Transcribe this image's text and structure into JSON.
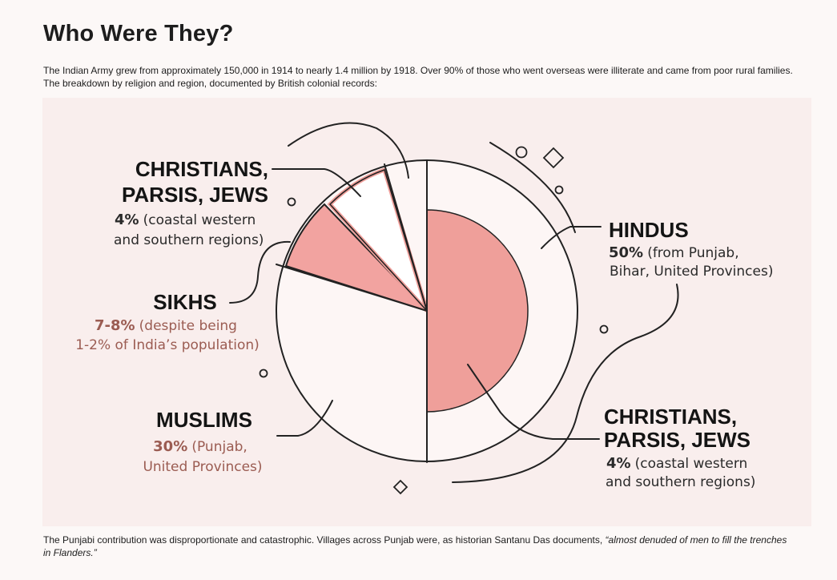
{
  "header": {
    "title": "Who Were They?",
    "intro": "The Indian Army grew from approximately 150,000 in 1914 to nearly 1.4 million by 1918. Over 90% of those who went overseas were illiterate and came from poor rural families. The breakdown by religion and region, documented by British colonial records:"
  },
  "figure": {
    "groups": [
      {
        "name": [
          "CHRISTIANS,",
          "PARSIS, JEWS"
        ],
        "percent": "4%",
        "description": [
          "(coastal western",
          "and southern regions)"
        ]
      },
      {
        "name": [
          "SIKHS"
        ],
        "percent": "7-8%",
        "description": [
          "(despite being",
          "1-2% of India’s population)"
        ]
      },
      {
        "name": [
          "MUSLIMS"
        ],
        "percent": "30%",
        "description": [
          "(Punjab,",
          "United Provinces)"
        ]
      },
      {
        "name": [
          "HINDUS"
        ],
        "percent": "50%",
        "description": [
          "(from Punjab,",
          "Bihar, United Provinces)"
        ]
      },
      {
        "name": [
          "CHRISTIANS,",
          "PARSIS, JEWS"
        ],
        "percent": "4%",
        "description": [
          "(coastal western",
          "and southern regions)"
        ]
      }
    ]
  },
  "footer": {
    "text": "The Punjabi contribution was disproportionate and catastrophic. Villages across Punjab were, as historian Santanu Das documents,",
    "quote": "“almost denuded of men to fill the trenches in Flanders.”"
  }
}
